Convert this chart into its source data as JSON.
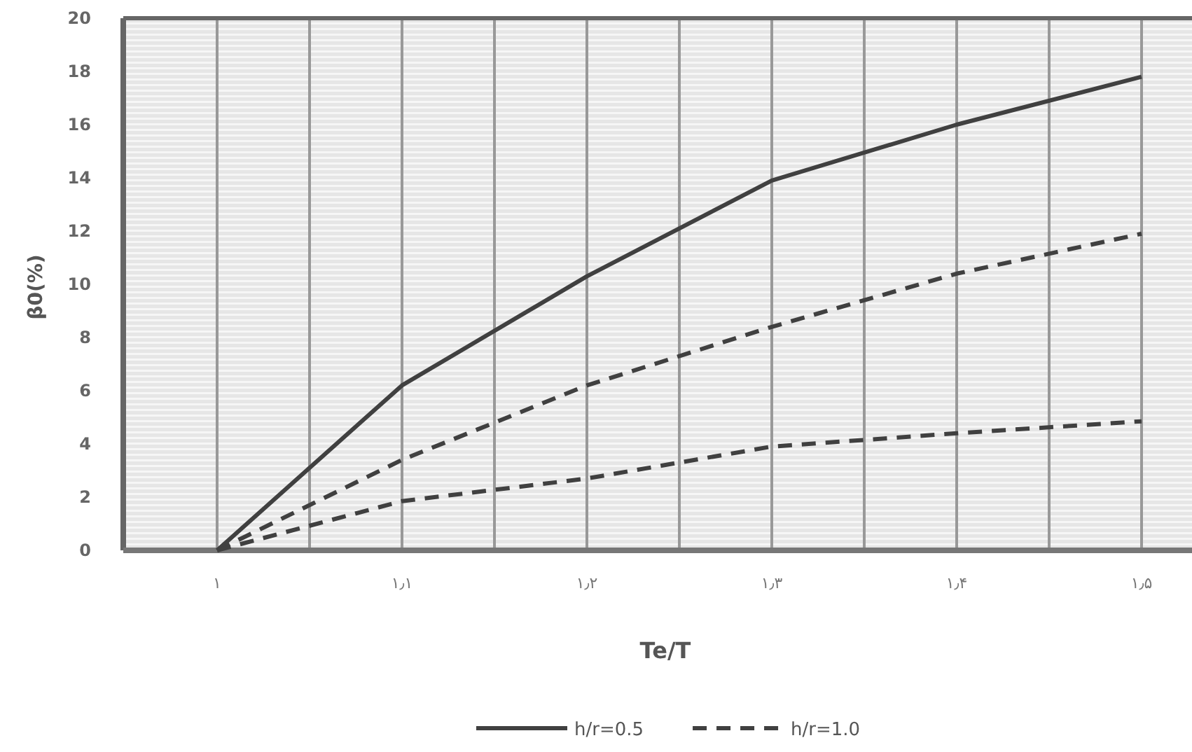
{
  "chart_data": {
    "type": "line",
    "xlabel": "Te/T",
    "ylabel": "β0(%)",
    "categories": [
      "۱",
      "۱٫۱",
      "۱٫۲",
      "۱٫۳",
      "۱٫۴",
      "۱٫۵"
    ],
    "series": [
      {
        "name": "h/r=0.5",
        "color": "#404040",
        "line_style": "solid",
        "values": [
          0,
          6.2,
          10.3,
          13.9,
          16.0,
          17.8
        ]
      },
      {
        "name": "h/r=1.0",
        "color": "#404040",
        "line_style": "dashed",
        "values": [
          0,
          3.4,
          6.2,
          8.4,
          10.4,
          11.9
        ]
      },
      {
        "color": "#404040",
        "line_style": "dashed",
        "values": [
          0,
          1.85,
          2.7,
          3.9,
          4.4,
          4.85
        ]
      }
    ],
    "ylim": [
      0,
      20
    ],
    "yticks": [
      0,
      2,
      4,
      6,
      8,
      10,
      12,
      14,
      16,
      18,
      20
    ],
    "grid": "x",
    "legend": "bottom",
    "marker": "none"
  }
}
